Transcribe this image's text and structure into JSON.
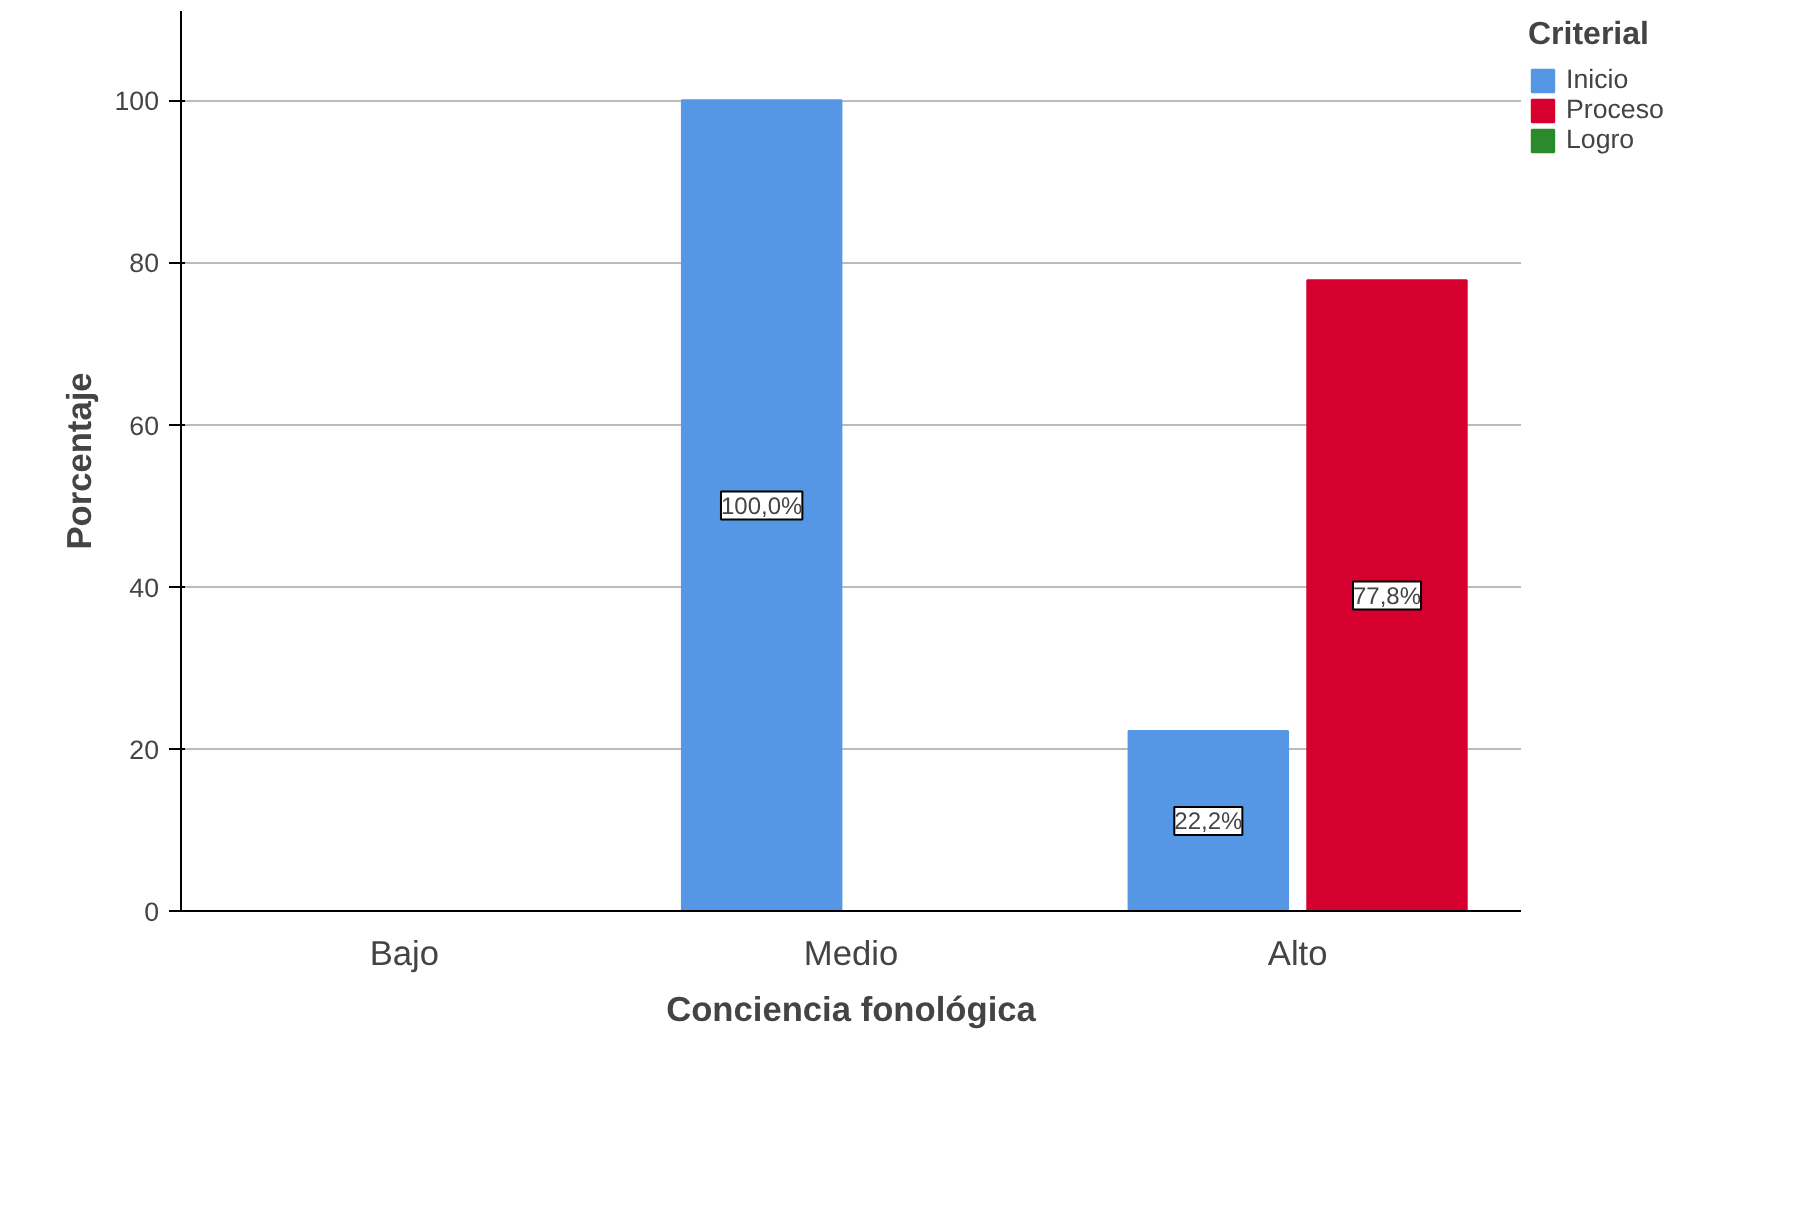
{
  "chart_data": {
    "type": "bar",
    "xlabel": "Conciencia fonológica",
    "ylabel": "Porcentaje",
    "legend_title": "Criterial",
    "categories": [
      "Bajo",
      "Medio",
      "Alto"
    ],
    "series": [
      {
        "name": "Inicio",
        "color": "#5597e4",
        "values": [
          null,
          100,
          22.2
        ],
        "value_labels": [
          null,
          "100,0%",
          "22,2%"
        ]
      },
      {
        "name": "Proceso",
        "color": "#d6002f",
        "values": [
          null,
          null,
          77.8
        ],
        "value_labels": [
          null,
          null,
          "77,8%"
        ]
      },
      {
        "name": "Logro",
        "color": "#2b8a2b",
        "values": [
          null,
          null,
          null
        ]
      }
    ],
    "ylim": [
      0,
      111
    ],
    "yticks": [
      0,
      20,
      40,
      60,
      80,
      100
    ],
    "grid": "y",
    "legend": "top right"
  }
}
